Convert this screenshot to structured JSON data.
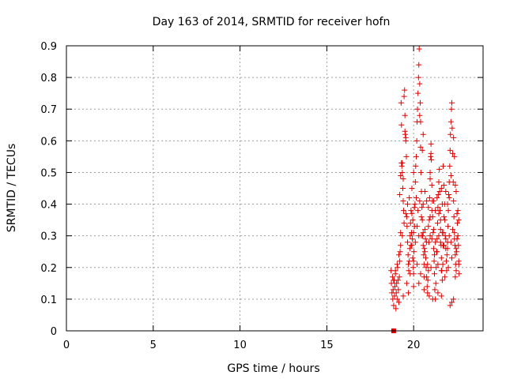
{
  "chart_data": {
    "type": "scatter",
    "title": "Day 163 of 2014, SRMTID for receiver hofn",
    "xlabel": "GPS time / hours",
    "ylabel": "SRMTID / TECUs",
    "xlim": [
      0,
      24
    ],
    "ylim": [
      0,
      0.9
    ],
    "xticks": [
      "0",
      "5",
      "10",
      "15",
      "20"
    ],
    "xtick_values": [
      0,
      5,
      10,
      15,
      20
    ],
    "yticks": [
      "0",
      "0.1",
      "0.2",
      "0.3",
      "0.4",
      "0.5",
      "0.6",
      "0.7",
      "0.8",
      "0.9"
    ],
    "ytick_values": [
      0,
      0.1,
      0.2,
      0.3,
      0.4,
      0.5,
      0.6,
      0.7,
      0.8,
      0.9
    ],
    "grid": true,
    "marker": "+",
    "color": "#e00000",
    "special_points": [
      {
        "x": 18.85,
        "y": 0.0,
        "marker": "square"
      }
    ],
    "series": [
      {
        "name": "SRMTID",
        "points": [
          [
            18.7,
            0.19
          ],
          [
            18.72,
            0.15
          ],
          [
            18.75,
            0.12
          ],
          [
            18.78,
            0.17
          ],
          [
            18.8,
            0.1
          ],
          [
            18.82,
            0.13
          ],
          [
            18.85,
            0.08
          ],
          [
            18.88,
            0.16
          ],
          [
            18.9,
            0.11
          ],
          [
            18.92,
            0.14
          ],
          [
            18.95,
            0.18
          ],
          [
            18.98,
            0.07
          ],
          [
            19.0,
            0.12
          ],
          [
            19.02,
            0.15
          ],
          [
            19.05,
            0.1
          ],
          [
            19.08,
            0.2
          ],
          [
            19.1,
            0.16
          ],
          [
            19.12,
            0.13
          ],
          [
            19.15,
            0.09
          ],
          [
            19.18,
            0.17
          ],
          [
            19.2,
            0.22
          ],
          [
            19.22,
            0.25
          ],
          [
            19.25,
            0.31
          ],
          [
            19.28,
            0.72
          ],
          [
            19.3,
            0.65
          ],
          [
            19.32,
            0.52
          ],
          [
            19.35,
            0.5
          ],
          [
            19.38,
            0.45
          ],
          [
            19.4,
            0.41
          ],
          [
            19.42,
            0.38
          ],
          [
            19.45,
            0.74
          ],
          [
            19.48,
            0.76
          ],
          [
            19.5,
            0.68
          ],
          [
            19.52,
            0.62
          ],
          [
            19.55,
            0.6
          ],
          [
            19.58,
            0.55
          ],
          [
            19.6,
            0.36
          ],
          [
            19.62,
            0.33
          ],
          [
            19.65,
            0.28
          ],
          [
            19.68,
            0.24
          ],
          [
            19.7,
            0.21
          ],
          [
            19.72,
            0.19
          ],
          [
            19.75,
            0.22
          ],
          [
            19.78,
            0.26
          ],
          [
            19.8,
            0.3
          ],
          [
            19.82,
            0.34
          ],
          [
            19.85,
            0.27
          ],
          [
            19.88,
            0.31
          ],
          [
            19.9,
            0.37
          ],
          [
            19.92,
            0.29
          ],
          [
            19.95,
            0.23
          ],
          [
            19.98,
            0.2
          ],
          [
            20.0,
            0.18
          ],
          [
            20.02,
            0.25
          ],
          [
            20.05,
            0.33
          ],
          [
            20.08,
            0.4
          ],
          [
            20.1,
            0.47
          ],
          [
            20.12,
            0.52
          ],
          [
            20.15,
            0.55
          ],
          [
            20.18,
            0.6
          ],
          [
            20.2,
            0.66
          ],
          [
            20.22,
            0.7
          ],
          [
            20.25,
            0.75
          ],
          [
            20.28,
            0.8
          ],
          [
            20.3,
            0.84
          ],
          [
            20.32,
            0.89
          ],
          [
            20.35,
            0.78
          ],
          [
            20.38,
            0.72
          ],
          [
            20.4,
            0.58
          ],
          [
            20.42,
            0.5
          ],
          [
            20.45,
            0.44
          ],
          [
            20.48,
            0.39
          ],
          [
            20.5,
            0.35
          ],
          [
            20.52,
            0.3
          ],
          [
            20.55,
            0.27
          ],
          [
            20.58,
            0.24
          ],
          [
            20.6,
            0.21
          ],
          [
            20.62,
            0.26
          ],
          [
            20.65,
            0.32
          ],
          [
            20.68,
            0.29
          ],
          [
            20.7,
            0.23
          ],
          [
            20.72,
            0.2
          ],
          [
            20.75,
            0.17
          ],
          [
            20.78,
            0.14
          ],
          [
            20.8,
            0.12
          ],
          [
            20.82,
            0.16
          ],
          [
            20.85,
            0.19
          ],
          [
            20.88,
            0.28
          ],
          [
            20.9,
            0.35
          ],
          [
            20.92,
            0.42
          ],
          [
            20.95,
            0.48
          ],
          [
            20.98,
            0.55
          ],
          [
            21.0,
            0.59
          ],
          [
            21.02,
            0.54
          ],
          [
            21.05,
            0.46
          ],
          [
            21.08,
            0.41
          ],
          [
            21.1,
            0.36
          ],
          [
            21.12,
            0.31
          ],
          [
            21.15,
            0.26
          ],
          [
            21.18,
            0.22
          ],
          [
            21.2,
            0.18
          ],
          [
            21.22,
            0.13
          ],
          [
            21.25,
            0.1
          ],
          [
            21.28,
            0.15
          ],
          [
            21.3,
            0.2
          ],
          [
            21.32,
            0.25
          ],
          [
            21.35,
            0.29
          ],
          [
            21.38,
            0.34
          ],
          [
            21.4,
            0.39
          ],
          [
            21.42,
            0.43
          ],
          [
            21.45,
            0.47
          ],
          [
            21.48,
            0.51
          ],
          [
            21.5,
            0.44
          ],
          [
            21.52,
            0.38
          ],
          [
            21.55,
            0.32
          ],
          [
            21.58,
            0.27
          ],
          [
            21.6,
            0.23
          ],
          [
            21.62,
            0.19
          ],
          [
            21.65,
            0.16
          ],
          [
            21.68,
            0.21
          ],
          [
            21.7,
            0.27
          ],
          [
            21.72,
            0.31
          ],
          [
            21.75,
            0.36
          ],
          [
            21.78,
            0.4
          ],
          [
            21.8,
            0.35
          ],
          [
            21.82,
            0.3
          ],
          [
            21.85,
            0.26
          ],
          [
            21.88,
            0.22
          ],
          [
            21.9,
            0.19
          ],
          [
            21.92,
            0.24
          ],
          [
            21.95,
            0.28
          ],
          [
            21.98,
            0.33
          ],
          [
            22.0,
            0.38
          ],
          [
            22.02,
            0.43
          ],
          [
            22.05,
            0.47
          ],
          [
            22.08,
            0.52
          ],
          [
            22.1,
            0.57
          ],
          [
            22.12,
            0.62
          ],
          [
            22.15,
            0.66
          ],
          [
            22.18,
            0.7
          ],
          [
            22.2,
            0.72
          ],
          [
            22.22,
            0.64
          ],
          [
            22.25,
            0.56
          ],
          [
            22.28,
            0.47
          ],
          [
            22.3,
            0.41
          ],
          [
            22.32,
            0.36
          ],
          [
            22.35,
            0.31
          ],
          [
            22.38,
            0.27
          ],
          [
            22.4,
            0.24
          ],
          [
            22.42,
            0.21
          ],
          [
            22.45,
            0.19
          ],
          [
            22.48,
            0.25
          ],
          [
            22.5,
            0.29
          ],
          [
            22.52,
            0.34
          ],
          [
            22.55,
            0.38
          ],
          [
            22.58,
            0.27
          ],
          [
            22.6,
            0.22
          ],
          [
            22.62,
            0.18
          ],
          [
            22.2,
            0.09
          ],
          [
            22.3,
            0.1
          ],
          [
            22.1,
            0.08
          ],
          [
            21.6,
            0.11
          ],
          [
            21.4,
            0.12
          ],
          [
            21.1,
            0.1
          ],
          [
            20.9,
            0.11
          ],
          [
            20.6,
            0.13
          ],
          [
            20.3,
            0.15
          ],
          [
            20.0,
            0.14
          ],
          [
            19.7,
            0.12
          ],
          [
            19.4,
            0.11
          ],
          [
            19.3,
            0.53
          ],
          [
            19.35,
            0.53
          ],
          [
            19.4,
            0.48
          ],
          [
            19.5,
            0.63
          ],
          [
            19.55,
            0.61
          ],
          [
            19.9,
            0.27
          ],
          [
            20.0,
            0.31
          ],
          [
            20.1,
            0.28
          ],
          [
            20.2,
            0.33
          ],
          [
            20.3,
            0.3
          ],
          [
            20.45,
            0.3
          ],
          [
            20.55,
            0.31
          ],
          [
            20.65,
            0.25
          ],
          [
            20.75,
            0.28
          ],
          [
            20.85,
            0.33
          ],
          [
            20.95,
            0.3
          ],
          [
            21.05,
            0.29
          ],
          [
            21.15,
            0.32
          ],
          [
            21.25,
            0.28
          ],
          [
            21.35,
            0.25
          ],
          [
            21.45,
            0.3
          ],
          [
            21.55,
            0.28
          ],
          [
            21.65,
            0.31
          ],
          [
            21.75,
            0.27
          ],
          [
            21.85,
            0.29
          ],
          [
            21.95,
            0.26
          ],
          [
            22.05,
            0.3
          ],
          [
            22.15,
            0.28
          ],
          [
            22.25,
            0.32
          ],
          [
            22.35,
            0.29
          ],
          [
            22.45,
            0.26
          ],
          [
            22.55,
            0.3
          ],
          [
            22.4,
            0.46
          ],
          [
            22.45,
            0.44
          ],
          [
            22.5,
            0.37
          ],
          [
            22.6,
            0.35
          ],
          [
            22.15,
            0.49
          ],
          [
            22.05,
            0.42
          ],
          [
            21.95,
            0.4
          ],
          [
            21.85,
            0.44
          ],
          [
            21.75,
            0.46
          ],
          [
            21.65,
            0.4
          ],
          [
            21.55,
            0.35
          ],
          [
            21.45,
            0.37
          ],
          [
            21.35,
            0.42
          ],
          [
            21.25,
            0.38
          ],
          [
            21.15,
            0.41
          ],
          [
            21.05,
            0.38
          ],
          [
            20.95,
            0.36
          ],
          [
            20.85,
            0.39
          ],
          [
            20.75,
            0.41
          ],
          [
            20.65,
            0.44
          ],
          [
            20.55,
            0.4
          ],
          [
            20.45,
            0.36
          ],
          [
            20.35,
            0.41
          ],
          [
            20.25,
            0.38
          ],
          [
            20.15,
            0.42
          ],
          [
            20.05,
            0.39
          ],
          [
            19.95,
            0.35
          ],
          [
            19.85,
            0.38
          ],
          [
            19.75,
            0.42
          ],
          [
            19.65,
            0.4
          ],
          [
            19.55,
            0.37
          ],
          [
            19.45,
            0.34
          ],
          [
            19.35,
            0.3
          ],
          [
            19.25,
            0.27
          ],
          [
            19.15,
            0.24
          ],
          [
            19.05,
            0.21
          ],
          [
            18.95,
            0.19
          ],
          [
            18.85,
            0.16
          ],
          [
            19.6,
            0.15
          ],
          [
            19.8,
            0.18
          ],
          [
            20.0,
            0.22
          ],
          [
            20.2,
            0.21
          ],
          [
            20.4,
            0.18
          ],
          [
            20.6,
            0.17
          ],
          [
            20.8,
            0.21
          ],
          [
            21.0,
            0.2
          ],
          [
            21.2,
            0.24
          ],
          [
            21.4,
            0.21
          ],
          [
            21.6,
            0.19
          ],
          [
            21.8,
            0.17
          ],
          [
            22.0,
            0.2
          ],
          [
            22.2,
            0.23
          ],
          [
            22.4,
            0.17
          ],
          [
            22.6,
            0.21
          ],
          [
            22.3,
            0.61
          ],
          [
            22.35,
            0.55
          ],
          [
            21.0,
            0.56
          ],
          [
            20.95,
            0.5
          ],
          [
            20.5,
            0.57
          ],
          [
            20.55,
            0.62
          ],
          [
            19.25,
            0.49
          ],
          [
            19.2,
            0.43
          ],
          [
            20.35,
            0.68
          ],
          [
            20.4,
            0.66
          ],
          [
            20.0,
            0.5
          ],
          [
            19.9,
            0.45
          ],
          [
            21.6,
            0.45
          ],
          [
            21.7,
            0.52
          ]
        ]
      }
    ]
  }
}
